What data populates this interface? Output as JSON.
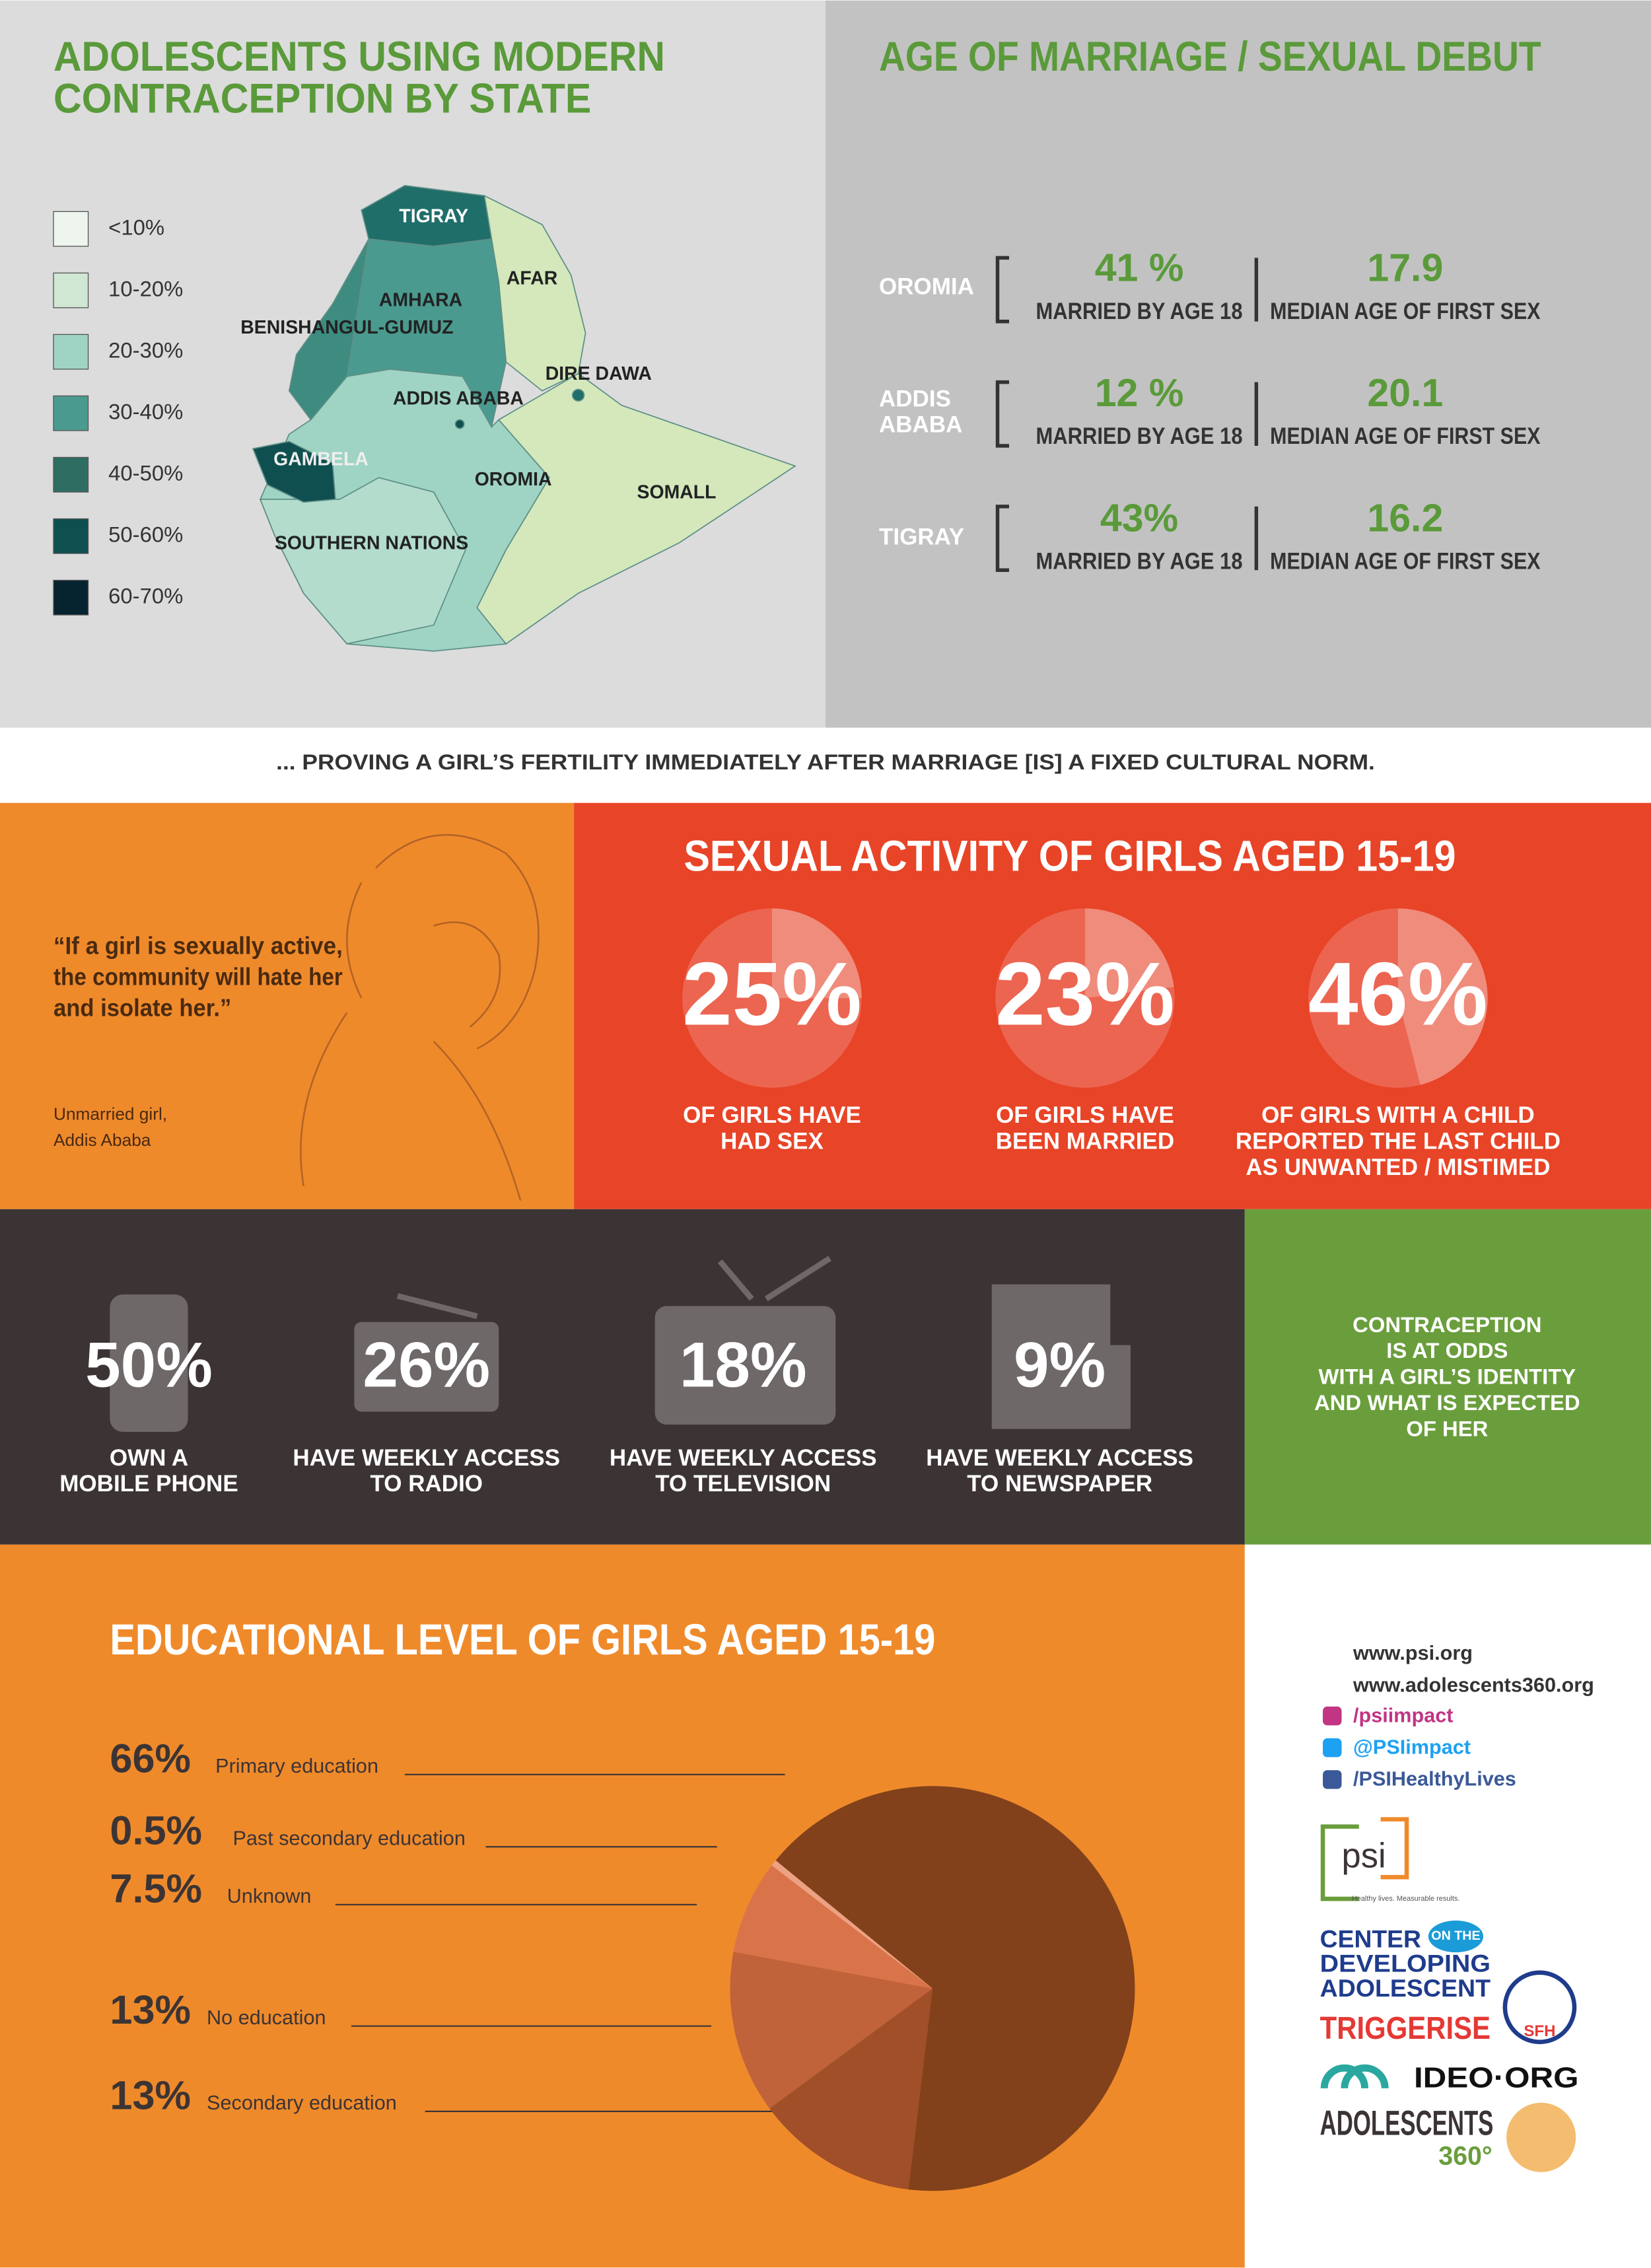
{
  "contraception_map": {
    "title_lines": [
      "ADOLESCENTS USING MODERN",
      "CONTRACEPTION BY STATE"
    ],
    "legend": [
      {
        "label": "<10%",
        "color": "#eef5ee"
      },
      {
        "label": "10-20%",
        "color": "#cfe7d3"
      },
      {
        "label": "20-30%",
        "color": "#9fd4c4"
      },
      {
        "label": "30-40%",
        "color": "#4b9a8f"
      },
      {
        "label": "40-50%",
        "color": "#2e6e62"
      },
      {
        "label": "50-60%",
        "color": "#0f4f50"
      },
      {
        "label": "60-70%",
        "color": "#062330"
      }
    ],
    "regions": [
      "TIGRAY",
      "AFAR",
      "AMHARA",
      "BENISHANGUL-GUMUZ",
      "ADDIS ABABA",
      "DIRE DAWA",
      "GAMBELA",
      "OROMIA",
      "SOMALL",
      "SOUTHERN NATIONS"
    ]
  },
  "marriage": {
    "title": "AGE OF MARRIAGE / SEXUAL DEBUT",
    "rows": [
      {
        "region_lines": [
          "OROMIA"
        ],
        "married": "41 %",
        "married_label": "MARRIED BY AGE 18",
        "median": "17.9",
        "median_label": "MEDIAN AGE OF FIRST SEX"
      },
      {
        "region_lines": [
          "ADDIS",
          "ABABA"
        ],
        "married": "12 %",
        "married_label": "MARRIED BY AGE 18",
        "median": "20.1",
        "median_label": "MEDIAN AGE OF FIRST SEX"
      },
      {
        "region_lines": [
          "TIGRAY"
        ],
        "married": "43%",
        "married_label": "MARRIED BY AGE 18",
        "median": "16.2",
        "median_label": "MEDIAN AGE OF FIRST SEX"
      }
    ]
  },
  "banner": "... PROVING A GIRL’S FERTILITY IMMEDIATELY AFTER MARRIAGE [IS] A FIXED CULTURAL NORM.",
  "quote": {
    "lines": [
      "“If a girl is sexually active,",
      "the community will hate her",
      "and isolate her.”"
    ],
    "attribution_lines": [
      "Unmarried girl,",
      "Addis Ababa"
    ]
  },
  "sexual_activity": {
    "title": "SEXUAL ACTIVITY OF GIRLS AGED 15-19",
    "stats": [
      {
        "value": 25,
        "label": "25%",
        "caption_lines": [
          "OF GIRLS HAVE",
          "HAD SEX"
        ]
      },
      {
        "value": 23,
        "label": "23%",
        "caption_lines": [
          "OF GIRLS HAVE",
          "BEEN MARRIED"
        ]
      },
      {
        "value": 46,
        "label": "46%",
        "caption_lines": [
          "OF GIRLS WITH A CHILD",
          "REPORTED THE LAST CHILD",
          "AS UNWANTED / MISTIMED"
        ]
      }
    ]
  },
  "media": {
    "stats": [
      {
        "label": "50%",
        "caption_lines": [
          "OWN A",
          "MOBILE PHONE"
        ]
      },
      {
        "label": "26%",
        "caption_lines": [
          "HAVE WEEKLY ACCESS",
          "TO RADIO"
        ]
      },
      {
        "label": "18%",
        "caption_lines": [
          "HAVE WEEKLY ACCESS",
          "TO TELEVISION"
        ]
      },
      {
        "label": "9%",
        "caption_lines": [
          "HAVE WEEKLY ACCESS",
          "TO NEWSPAPER"
        ]
      }
    ]
  },
  "callout": {
    "lines": [
      "CONTRACEPTION",
      "IS AT ODDS",
      "WITH A GIRL’S IDENTITY",
      "AND WHAT IS EXPECTED",
      "OF HER"
    ]
  },
  "education": {
    "title": "EDUCATIONAL LEVEL OF GIRLS AGED 15-19",
    "items": [
      {
        "value": 66,
        "label": "66%",
        "name": "Primary education",
        "color": "#82411b"
      },
      {
        "value": 0.5,
        "label": "0.5%",
        "name": "Past secondary education",
        "color": "#eba184"
      },
      {
        "value": 7.5,
        "label": "7.5%",
        "name": "Unknown",
        "color": "#d9744a"
      },
      {
        "value": 13,
        "label": "13%",
        "name": "No education",
        "color": "#c0623a"
      },
      {
        "value": 13,
        "label": "13%",
        "name": "Secondary education",
        "color": "#a04f28"
      }
    ]
  },
  "links": {
    "urls": [
      "www.psi.org",
      "www.adolescents360.org"
    ],
    "social": [
      "/psiimpact",
      "@PSIimpact",
      "/PSIHealthyLives"
    ]
  },
  "logos": {
    "psi": "psi",
    "psi_tagline": "Healthy lives. Measurable results.",
    "cda_lines": [
      "CENTER",
      "DEVELOPING",
      "ADOLESCENT"
    ],
    "cda_badge": "ON THE",
    "triggerise": "TRIGGERISE",
    "sfh": "SFH",
    "ideo": "IDEO·ORG",
    "a360": "ADOLESCENTS",
    "a360_num": "360°"
  }
}
